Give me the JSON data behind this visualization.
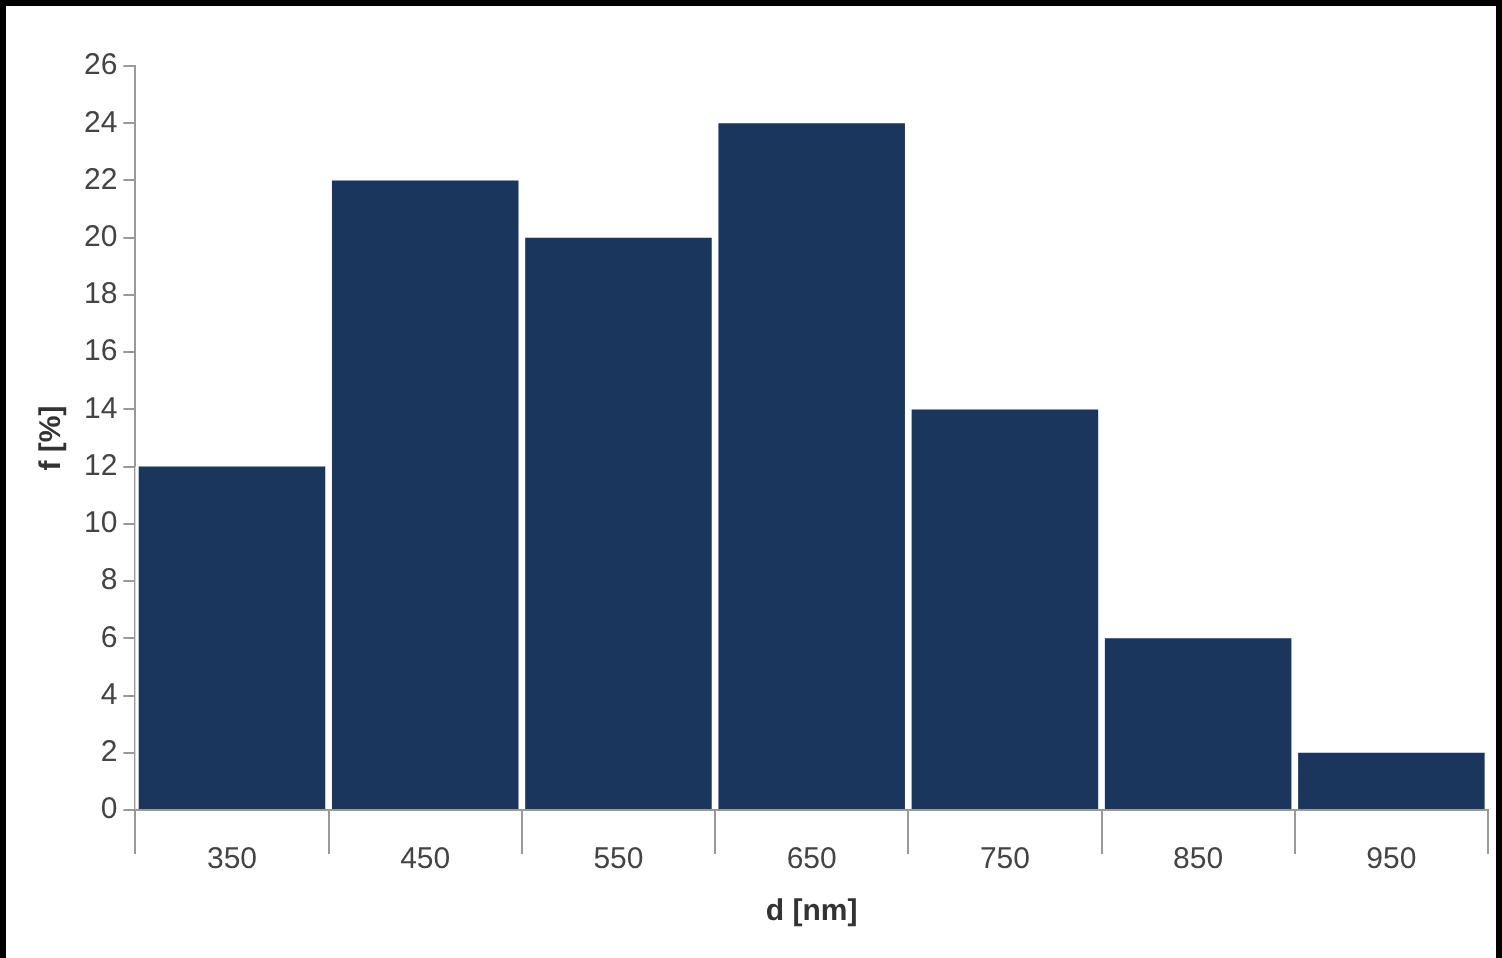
{
  "chart_data": {
    "type": "bar",
    "xlabel": "d [nm]",
    "ylabel": "f [%]",
    "categories": [
      "350",
      "450",
      "550",
      "650",
      "750",
      "850",
      "950"
    ],
    "values": [
      12,
      22,
      20,
      24,
      14,
      6,
      2
    ],
    "color": "#1b365d",
    "ylim": [
      0,
      26
    ],
    "yticks": [
      0,
      2,
      4,
      6,
      8,
      10,
      12,
      14,
      16,
      18,
      20,
      22,
      24,
      26
    ],
    "grid": false,
    "legend": false
  }
}
